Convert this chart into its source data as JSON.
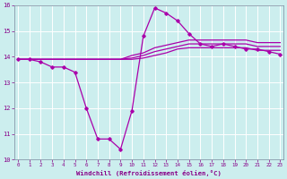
{
  "x": [
    0,
    1,
    2,
    3,
    4,
    5,
    6,
    7,
    8,
    9,
    10,
    11,
    12,
    13,
    14,
    15,
    16,
    17,
    18,
    19,
    20,
    21,
    22,
    23
  ],
  "windchill": [
    13.9,
    13.9,
    13.8,
    13.6,
    13.6,
    13.4,
    12.0,
    10.8,
    10.8,
    10.4,
    11.9,
    14.8,
    15.9,
    15.7,
    15.4,
    14.9,
    14.5,
    14.4,
    14.5,
    14.4,
    14.3,
    14.3,
    14.2,
    14.1
  ],
  "temp_upper": [
    13.9,
    13.9,
    13.9,
    13.9,
    13.9,
    13.9,
    13.9,
    13.9,
    13.9,
    13.9,
    14.05,
    14.15,
    14.35,
    14.45,
    14.55,
    14.65,
    14.65,
    14.65,
    14.65,
    14.65,
    14.65,
    14.55,
    14.55,
    14.55
  ],
  "temp_mid": [
    13.9,
    13.9,
    13.9,
    13.9,
    13.9,
    13.9,
    13.9,
    13.9,
    13.9,
    13.9,
    13.95,
    14.05,
    14.2,
    14.3,
    14.4,
    14.5,
    14.5,
    14.5,
    14.5,
    14.5,
    14.5,
    14.4,
    14.4,
    14.4
  ],
  "temp_lower": [
    13.9,
    13.9,
    13.9,
    13.9,
    13.9,
    13.9,
    13.9,
    13.9,
    13.9,
    13.9,
    13.9,
    13.95,
    14.05,
    14.15,
    14.3,
    14.35,
    14.35,
    14.35,
    14.35,
    14.35,
    14.35,
    14.25,
    14.25,
    14.25
  ],
  "line_color": "#aa00aa",
  "bg_color": "#cceeee",
  "grid_color": "#aadddd",
  "spine_color": "#8899aa",
  "tick_color": "#880088",
  "ylim": [
    10,
    16
  ],
  "xlim": [
    0,
    23
  ],
  "xlabel": "Windchill (Refroidissement éolien,°C)",
  "yticks": [
    10,
    11,
    12,
    13,
    14,
    15,
    16
  ],
  "xticks": [
    0,
    1,
    2,
    3,
    4,
    5,
    6,
    7,
    8,
    9,
    10,
    11,
    12,
    13,
    14,
    15,
    16,
    17,
    18,
    19,
    20,
    21,
    22,
    23
  ]
}
